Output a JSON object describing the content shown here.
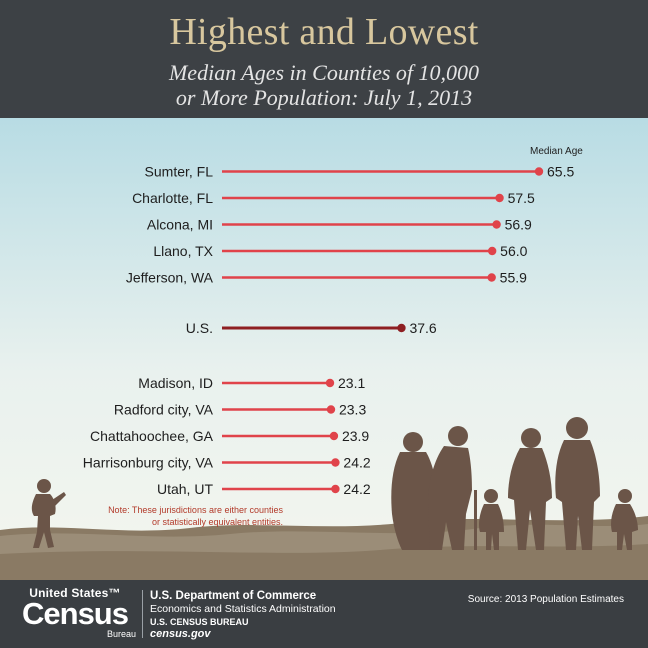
{
  "header": {
    "title": "Highest and Lowest",
    "subtitle_line1": "Median Ages in Counties of 10,000",
    "subtitle_line2": "or More Population: July 1, 2013"
  },
  "chart_data": {
    "type": "bar",
    "ylabel": "Median Age",
    "note_line1": "Note: These jurisdictions are either counties",
    "note_line2": "or statistically equivalent entities.",
    "groups": [
      {
        "name": "highest",
        "items": [
          {
            "label": "Sumter, FL",
            "value": 65.5,
            "value_label": "65.5"
          },
          {
            "label": "Charlotte, FL",
            "value": 57.5,
            "value_label": "57.5"
          },
          {
            "label": "Alcona, MI",
            "value": 56.9,
            "value_label": "56.9"
          },
          {
            "label": "Llano, TX",
            "value": 56.0,
            "value_label": "56.0"
          },
          {
            "label": "Jefferson, WA",
            "value": 55.9,
            "value_label": "55.9"
          }
        ]
      },
      {
        "name": "us",
        "items": [
          {
            "label": "U.S.",
            "value": 37.6,
            "value_label": "37.6"
          }
        ]
      },
      {
        "name": "lowest",
        "items": [
          {
            "label": "Madison, ID",
            "value": 23.1,
            "value_label": "23.1"
          },
          {
            "label": "Radford city, VA",
            "value": 23.3,
            "value_label": "23.3"
          },
          {
            "label": "Chattahoochee, GA",
            "value": 23.9,
            "value_label": "23.9"
          },
          {
            "label": "Harrisonburg city, VA",
            "value": 24.2,
            "value_label": "24.2"
          },
          {
            "label": "Utah, UT",
            "value": 24.2,
            "value_label": "24.2"
          }
        ]
      }
    ],
    "colors": {
      "bar": "#e0434a",
      "us_bar": "#8e1f22",
      "sky_top": "#b8dce4",
      "sky_bottom": "#f4f6ee",
      "ground": "#8a7a64",
      "silhouette": "#6b5548"
    }
  },
  "footer": {
    "logo_top": "United States™",
    "logo_main": "Census",
    "logo_bottom": "Bureau",
    "dept": "U.S. Department of Commerce",
    "econ": "Economics and Statistics Administration",
    "bureau": "U.S. CENSUS BUREAU",
    "site": "census.gov",
    "source": "Source: 2013 Population Estimates"
  }
}
